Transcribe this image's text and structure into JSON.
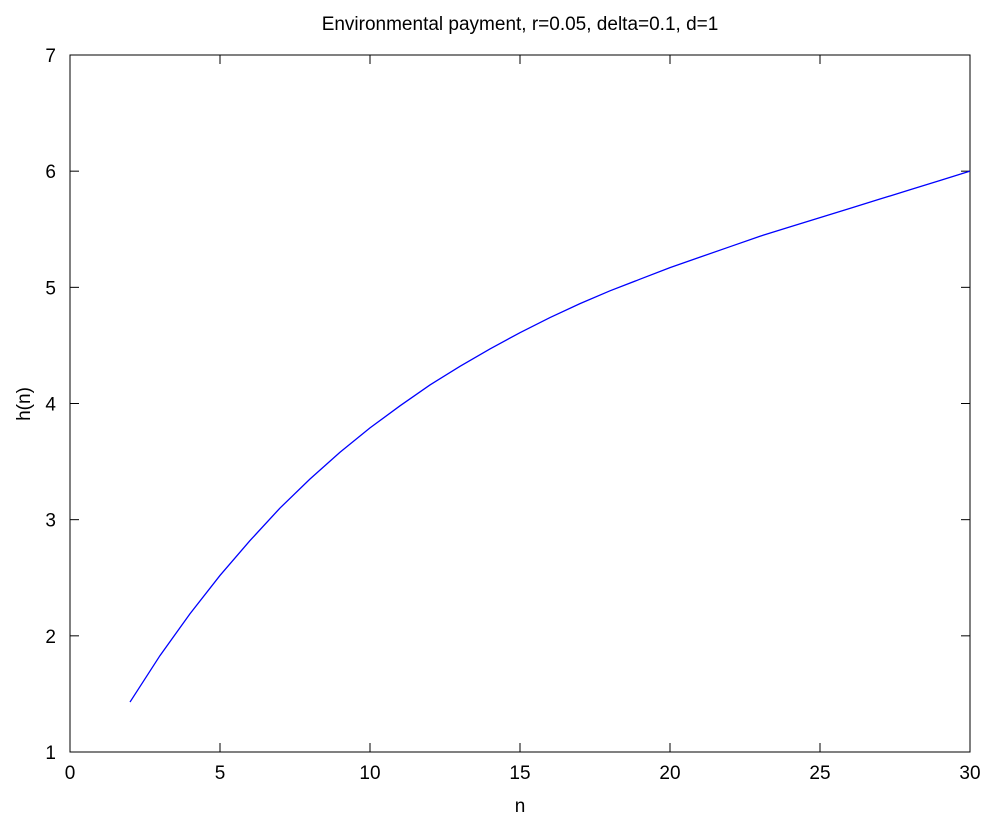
{
  "chart_data": {
    "type": "line",
    "title": "Environmental payment, r=0.05, delta=0.1, d=1",
    "xlabel": "n",
    "ylabel": "h(n)",
    "xlim": [
      0,
      30
    ],
    "ylim": [
      1,
      7
    ],
    "xticks": [
      0,
      5,
      10,
      15,
      20,
      25,
      30
    ],
    "yticks": [
      1,
      2,
      3,
      4,
      5,
      6,
      7
    ],
    "xtick_labels": [
      "0",
      "5",
      "10",
      "15",
      "20",
      "25",
      "30"
    ],
    "ytick_labels": [
      "1",
      "2",
      "3",
      "4",
      "5",
      "6",
      "7"
    ],
    "grid": false,
    "legend": "none",
    "series": [
      {
        "color": "#0000ff",
        "x": [
          2,
          3,
          4,
          5,
          6,
          7,
          8,
          9,
          10,
          11,
          12,
          13,
          14,
          15,
          16,
          17,
          18,
          19,
          20,
          21,
          22,
          23,
          24,
          25,
          26,
          27,
          28,
          29,
          30
        ],
        "y": [
          1.43,
          1.83,
          2.19,
          2.52,
          2.82,
          3.1,
          3.35,
          3.58,
          3.79,
          3.98,
          4.16,
          4.32,
          4.47,
          4.61,
          4.74,
          4.86,
          4.97,
          5.07,
          5.17,
          5.26,
          5.35,
          5.44,
          5.52,
          5.6,
          5.68,
          5.76,
          5.84,
          5.92,
          6.0
        ]
      }
    ]
  }
}
